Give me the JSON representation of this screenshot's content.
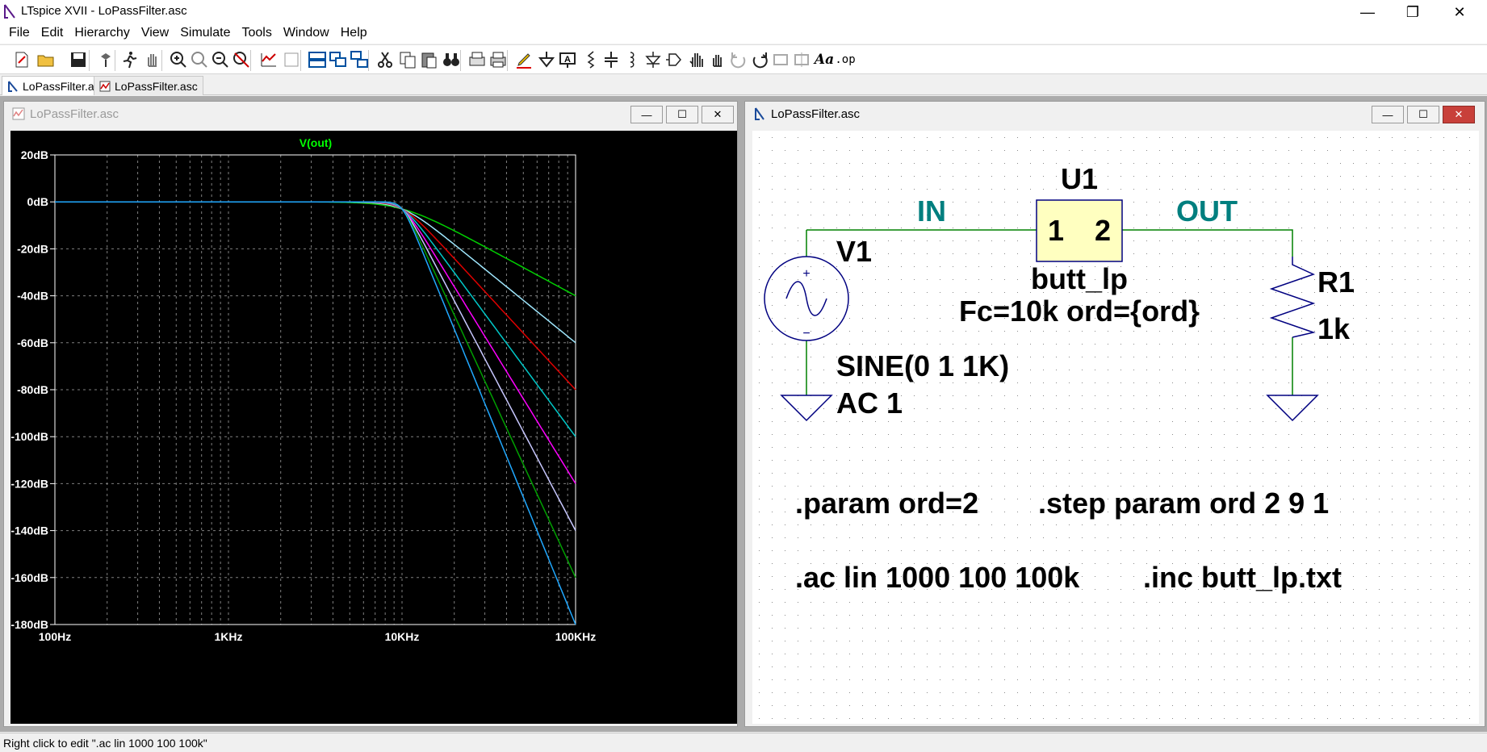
{
  "window": {
    "title": "LTspice XVII - LoPassFilter.asc",
    "controls": {
      "minimize": "—",
      "restore": "❐",
      "close": "✕"
    }
  },
  "menu": [
    "File",
    "Edit",
    "Hierarchy",
    "View",
    "Simulate",
    "Tools",
    "Window",
    "Help"
  ],
  "toolbar": {
    "buttons": [
      "new-schematic",
      "open",
      "save",
      "control-panel",
      "run",
      "halt",
      "zoom-in",
      "pan-zoom",
      "zoom-out",
      "zoom-fit",
      "autorange",
      "setup-plot",
      "tile-horizontal",
      "tile-vertical",
      "cascade",
      "cut",
      "copy",
      "paste",
      "find",
      "print-preview",
      "print",
      "draw-wire",
      "ground",
      "label-net",
      "resistor",
      "capacitor",
      "inductor",
      "diode",
      "component",
      "move",
      "drag",
      "undo",
      "redo",
      "rotate",
      "mirror",
      "text",
      "spice-directive"
    ],
    "text_label": "Aa",
    "op_label": ".op"
  },
  "doc_tabs": [
    {
      "label": "LoPassFilter.asc",
      "active": true,
      "kind": "schematic"
    },
    {
      "label": "LoPassFilter.asc",
      "active": false,
      "kind": "waveform"
    }
  ],
  "plot_window": {
    "title": "LoPassFilter.asc",
    "trace_label": "V(out)",
    "trace_label_color": "#00ff00",
    "y_ticks": [
      "20dB",
      "0dB",
      "-20dB",
      "-40dB",
      "-60dB",
      "-80dB",
      "-100dB",
      "-120dB",
      "-140dB",
      "-160dB",
      "-180dB"
    ],
    "x_ticks": [
      "100Hz",
      "1KHz",
      "10KHz",
      "100KHz"
    ],
    "colors": {
      "background": "#000000",
      "axis": "#ffffff",
      "grid": "#7f7f7f"
    }
  },
  "chart_data": {
    "type": "line",
    "x_scale": "log",
    "xlim": [
      100,
      100000
    ],
    "ylim": [
      -180,
      20
    ],
    "xlabel": "",
    "ylabel": "",
    "title": "V(out)",
    "cutoff_hz": 10000,
    "series": [
      {
        "order": 2,
        "color": "#00d000",
        "x": [
          100,
          1000,
          10000,
          20000,
          50000,
          100000
        ],
        "y": [
          0,
          0,
          -3,
          -12.3,
          -28,
          -40
        ]
      },
      {
        "order": 3,
        "color": "#a0e8ff",
        "x": [
          100,
          1000,
          10000,
          20000,
          50000,
          100000
        ],
        "y": [
          0,
          0,
          -3,
          -18.1,
          -42,
          -60
        ]
      },
      {
        "order": 4,
        "color": "#e00000",
        "x": [
          100,
          1000,
          10000,
          20000,
          50000,
          100000
        ],
        "y": [
          0,
          0,
          -3,
          -24.1,
          -56,
          -80
        ]
      },
      {
        "order": 5,
        "color": "#00c8c8",
        "x": [
          100,
          1000,
          10000,
          20000,
          50000,
          100000
        ],
        "y": [
          0,
          0,
          -3,
          -30.1,
          -70,
          -100
        ]
      },
      {
        "order": 6,
        "color": "#ff00ff",
        "x": [
          100,
          1000,
          10000,
          20000,
          50000,
          100000
        ],
        "y": [
          0,
          0,
          -3,
          -36.1,
          -84,
          -120
        ]
      },
      {
        "order": 7,
        "color": "#c8c8ff",
        "x": [
          100,
          1000,
          10000,
          20000,
          50000,
          100000
        ],
        "y": [
          0,
          0,
          -3,
          -42.1,
          -98,
          -140
        ]
      },
      {
        "order": 8,
        "color": "#00a000",
        "x": [
          100,
          1000,
          10000,
          20000,
          50000,
          100000
        ],
        "y": [
          0,
          0,
          -3,
          -48.2,
          -112,
          -160
        ]
      },
      {
        "order": 9,
        "color": "#20a8ff",
        "x": [
          100,
          1000,
          10000,
          20000,
          50000,
          100000
        ],
        "y": [
          0,
          0,
          -3,
          -54.2,
          -126,
          -180
        ]
      }
    ]
  },
  "schematic_window": {
    "title": "LoPassFilter.asc",
    "net_in": "IN",
    "net_out": "OUT",
    "u1_ref": "U1",
    "u1_pin1": "1",
    "u1_pin2": "2",
    "u1_model": "butt_lp",
    "u1_params": "Fc=10k ord={ord}",
    "v1_ref": "V1",
    "v1_plus": "+",
    "v1_minus": "−",
    "v1_value": "SINE(0 1 1K)",
    "v1_ac": "AC 1",
    "r1_ref": "R1",
    "r1_value": "1k",
    "directive_param": ".param ord=2",
    "directive_step": ".step param ord 2 9 1",
    "directive_ac": ".ac lin 1000 100 100k",
    "directive_inc": ".inc butt_lp.txt",
    "colors": {
      "wire": "#008000",
      "net_label": "#007f7f",
      "component": "#000080",
      "component_fill": "#ffffc0",
      "text": "#000000"
    }
  },
  "status": {
    "text": "Right click to edit \".ac lin 1000 100 100k\""
  }
}
